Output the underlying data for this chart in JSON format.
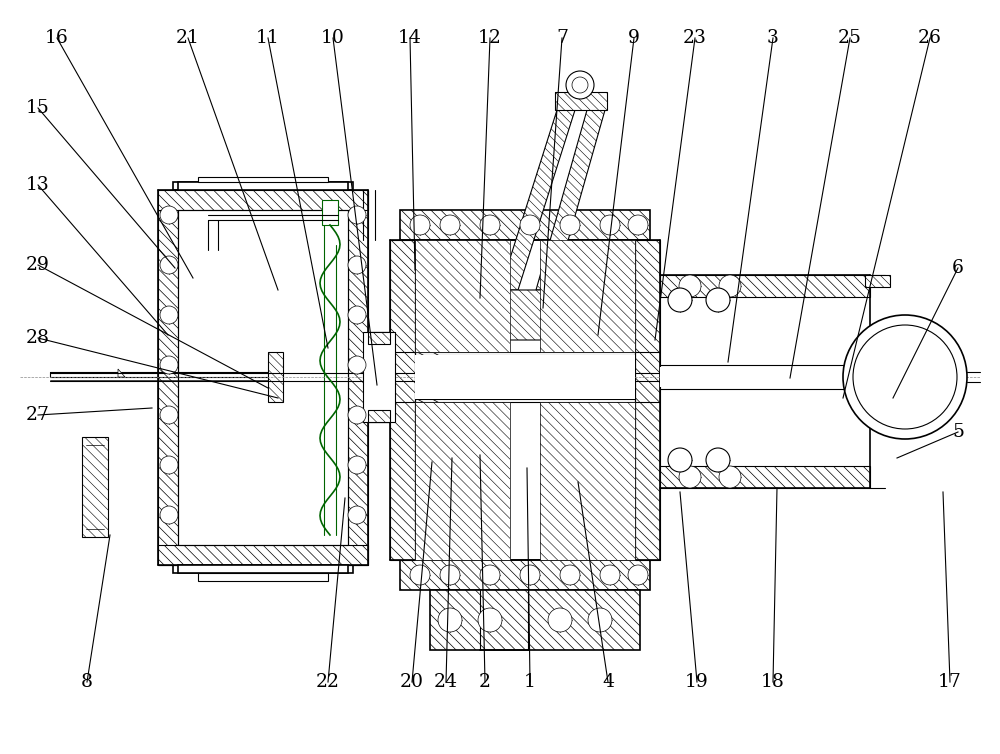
{
  "figure_width": 10.0,
  "figure_height": 7.54,
  "dpi": 100,
  "bg_color": "#ffffff",
  "line_color": "#000000",
  "top_labels": [
    [
      "16",
      57,
      38
    ],
    [
      "21",
      188,
      38
    ],
    [
      "11",
      268,
      38
    ],
    [
      "10",
      333,
      38
    ],
    [
      "14",
      410,
      38
    ],
    [
      "12",
      490,
      38
    ],
    [
      "7",
      562,
      38
    ],
    [
      "9",
      634,
      38
    ],
    [
      "23",
      695,
      38
    ],
    [
      "3",
      773,
      38
    ],
    [
      "25",
      850,
      38
    ],
    [
      "26",
      930,
      38
    ]
  ],
  "left_labels": [
    [
      "15",
      38,
      108
    ],
    [
      "13",
      38,
      185
    ],
    [
      "29",
      38,
      265
    ],
    [
      "28",
      38,
      338
    ],
    [
      "27",
      38,
      415
    ]
  ],
  "right_labels": [
    [
      "6",
      958,
      268
    ]
  ],
  "bottom_labels": [
    [
      "8",
      87,
      682
    ],
    [
      "22",
      328,
      682
    ],
    [
      "20",
      412,
      682
    ],
    [
      "24",
      446,
      682
    ],
    [
      "2",
      485,
      682
    ],
    [
      "1",
      530,
      682
    ],
    [
      "4",
      608,
      682
    ],
    [
      "19",
      697,
      682
    ],
    [
      "18",
      773,
      682
    ],
    [
      "17",
      950,
      682
    ]
  ],
  "right_bottom_labels": [
    [
      "5",
      958,
      432
    ]
  ],
  "leader_map": {
    "16": [
      57,
      38,
      193,
      278
    ],
    "21": [
      188,
      38,
      278,
      290
    ],
    "11": [
      268,
      38,
      328,
      348
    ],
    "10": [
      333,
      38,
      377,
      385
    ],
    "14": [
      410,
      38,
      415,
      270
    ],
    "12": [
      490,
      38,
      480,
      298
    ],
    "7": [
      562,
      38,
      543,
      308
    ],
    "9": [
      634,
      38,
      598,
      335
    ],
    "23": [
      695,
      38,
      655,
      340
    ],
    "3": [
      773,
      38,
      728,
      362
    ],
    "25": [
      850,
      38,
      790,
      378
    ],
    "26": [
      930,
      38,
      843,
      398
    ],
    "15": [
      38,
      108,
      175,
      268
    ],
    "13": [
      38,
      185,
      168,
      335
    ],
    "29": [
      38,
      265,
      268,
      388
    ],
    "28": [
      38,
      338,
      278,
      398
    ],
    "27": [
      38,
      415,
      152,
      408
    ],
    "6": [
      958,
      268,
      893,
      398
    ],
    "8": [
      87,
      682,
      110,
      535
    ],
    "22": [
      328,
      682,
      345,
      498
    ],
    "20": [
      412,
      682,
      432,
      462
    ],
    "24": [
      446,
      682,
      452,
      458
    ],
    "2": [
      485,
      682,
      480,
      455
    ],
    "1": [
      530,
      682,
      527,
      468
    ],
    "4": [
      608,
      682,
      578,
      482
    ],
    "19": [
      697,
      682,
      680,
      492
    ],
    "18": [
      773,
      682,
      777,
      488
    ],
    "17": [
      950,
      682,
      943,
      492
    ],
    "5": [
      958,
      432,
      897,
      458
    ]
  }
}
